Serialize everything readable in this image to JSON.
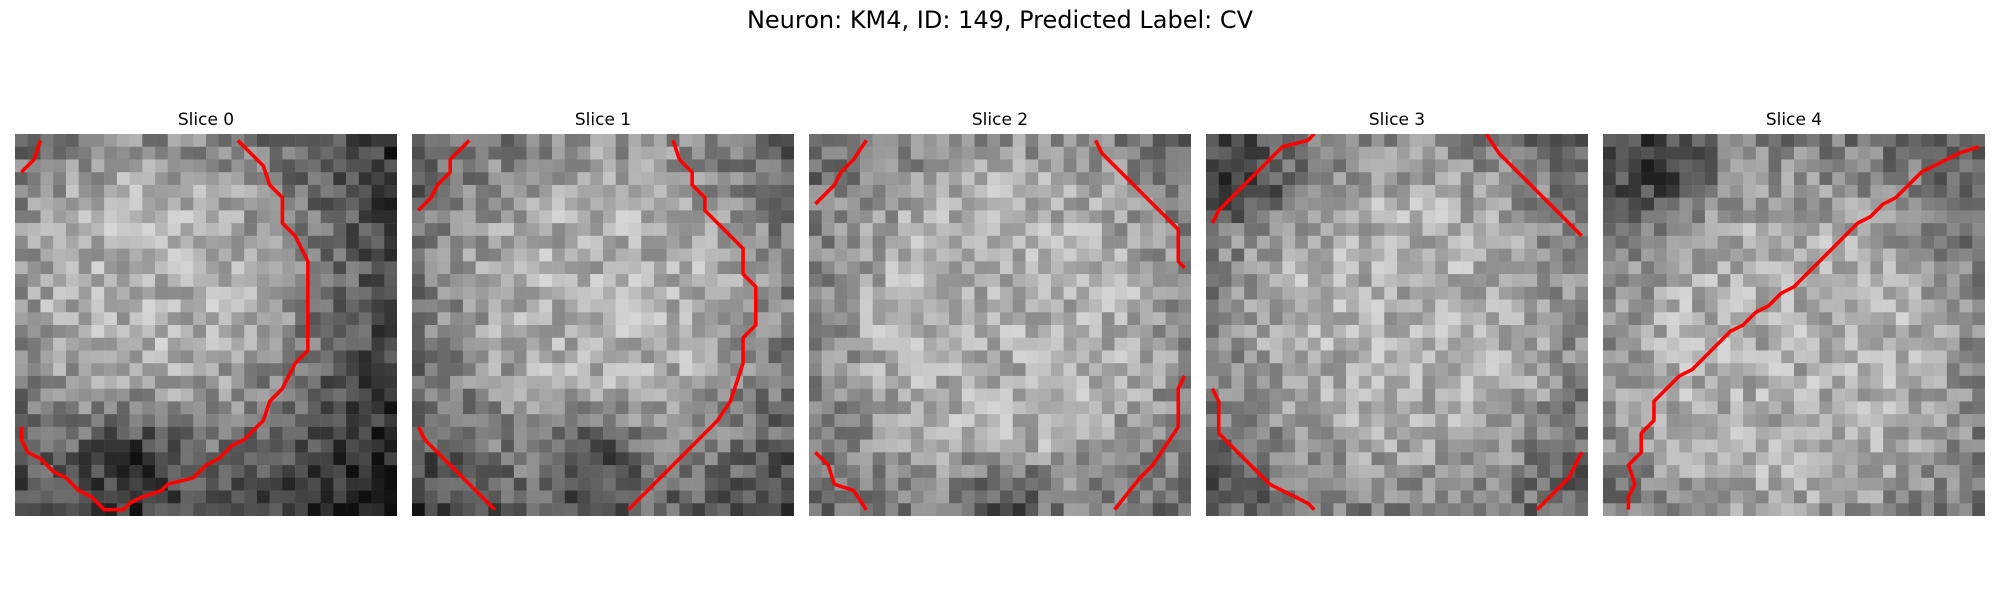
{
  "figure": {
    "title": "Neuron: KM4, ID: 149, Predicted Label: CV",
    "contour_color": "#ff0000",
    "slices": [
      {
        "title": "Slice 0",
        "contours": [
          [
            [
              0.5,
              3.0
            ],
            [
              1.5,
              2.0
            ],
            [
              2.0,
              0.5
            ]
          ],
          [
            [
              17.5,
              0.5
            ],
            [
              19.5,
              2.5
            ],
            [
              20.0,
              4.0
            ],
            [
              21.0,
              5.0
            ],
            [
              21.0,
              7.0
            ],
            [
              22.0,
              8.0
            ],
            [
              23.0,
              10.0
            ],
            [
              23.0,
              17.0
            ],
            [
              22.0,
              18.0
            ],
            [
              21.0,
              20.0
            ],
            [
              20.0,
              21.0
            ],
            [
              19.5,
              22.5
            ],
            [
              18.0,
              24.0
            ],
            [
              17.0,
              24.5
            ],
            [
              16.0,
              25.5
            ],
            [
              15.0,
              26.0
            ],
            [
              14.0,
              27.0
            ],
            [
              12.0,
              27.5
            ],
            [
              11.5,
              28.0
            ],
            [
              10.0,
              28.5
            ],
            [
              9.0,
              29.0
            ],
            [
              8.5,
              29.5
            ],
            [
              7.0,
              29.5
            ],
            [
              6.0,
              28.5
            ],
            [
              5.0,
              28.0
            ],
            [
              4.0,
              27.0
            ],
            [
              3.0,
              26.5
            ],
            [
              2.0,
              25.5
            ],
            [
              1.0,
              25.0
            ],
            [
              0.5,
              24.0
            ],
            [
              0.5,
              23.0
            ]
          ]
        ]
      },
      {
        "title": "Slice 1",
        "contours": [
          [
            [
              0.5,
              6.0
            ],
            [
              1.5,
              5.0
            ],
            [
              2.0,
              4.0
            ],
            [
              3.0,
              3.0
            ],
            [
              3.0,
              2.0
            ],
            [
              4.5,
              0.5
            ]
          ],
          [
            [
              20.5,
              0.5
            ],
            [
              21.0,
              2.0
            ],
            [
              22.0,
              3.0
            ],
            [
              22.0,
              4.0
            ],
            [
              23.0,
              5.0
            ],
            [
              23.0,
              6.0
            ],
            [
              24.0,
              7.0
            ],
            [
              25.0,
              8.0
            ],
            [
              26.0,
              9.0
            ],
            [
              26.0,
              11.0
            ],
            [
              27.0,
              12.0
            ],
            [
              27.0,
              15.0
            ],
            [
              26.0,
              16.0
            ],
            [
              26.0,
              18.0
            ],
            [
              25.5,
              19.5
            ],
            [
              25.0,
              21.0
            ],
            [
              24.0,
              22.5
            ],
            [
              23.0,
              23.5
            ],
            [
              22.0,
              24.5
            ],
            [
              21.0,
              25.5
            ],
            [
              20.0,
              26.5
            ],
            [
              19.0,
              27.5
            ],
            [
              18.0,
              28.5
            ],
            [
              17.0,
              29.5
            ]
          ],
          [
            [
              0.5,
              23.0
            ],
            [
              1.0,
              24.0
            ],
            [
              2.0,
              25.0
            ],
            [
              3.0,
              26.0
            ],
            [
              4.0,
              27.0
            ],
            [
              5.0,
              28.0
            ],
            [
              6.0,
              29.0
            ],
            [
              6.5,
              29.5
            ]
          ]
        ]
      },
      {
        "title": "Slice 2",
        "contours": [
          [
            [
              0.5,
              5.5
            ],
            [
              2.0,
              4.0
            ],
            [
              2.5,
              3.0
            ],
            [
              3.5,
              2.0
            ],
            [
              4.5,
              0.5
            ]
          ],
          [
            [
              22.5,
              0.5
            ],
            [
              23.0,
              1.5
            ],
            [
              24.0,
              2.5
            ],
            [
              25.0,
              3.5
            ],
            [
              26.0,
              4.5
            ],
            [
              27.0,
              5.5
            ],
            [
              28.0,
              6.5
            ],
            [
              29.0,
              7.5
            ],
            [
              29.0,
              10.0
            ],
            [
              29.5,
              10.5
            ]
          ],
          [
            [
              0.5,
              25.0
            ],
            [
              1.5,
              26.0
            ],
            [
              2.0,
              27.5
            ],
            [
              3.5,
              28.0
            ],
            [
              4.5,
              29.5
            ]
          ],
          [
            [
              29.5,
              19.0
            ],
            [
              29.0,
              20.0
            ],
            [
              29.0,
              23.0
            ],
            [
              28.0,
              24.5
            ],
            [
              27.0,
              26.0
            ],
            [
              26.0,
              27.0
            ],
            [
              24.0,
              29.5
            ]
          ]
        ]
      },
      {
        "title": "Slice 3",
        "contours": [
          [
            [
              0.5,
              7.0
            ],
            [
              1.0,
              6.0
            ],
            [
              2.0,
              5.0
            ],
            [
              3.0,
              4.0
            ],
            [
              4.0,
              3.0
            ],
            [
              5.0,
              2.0
            ],
            [
              6.0,
              1.0
            ],
            [
              8.0,
              0.5
            ],
            [
              8.5,
              0.0
            ]
          ],
          [
            [
              22.0,
              0.0
            ],
            [
              23.0,
              1.5
            ],
            [
              24.0,
              2.5
            ],
            [
              25.0,
              3.5
            ],
            [
              26.0,
              4.5
            ],
            [
              27.0,
              5.5
            ],
            [
              28.0,
              6.5
            ],
            [
              29.5,
              8.0
            ]
          ],
          [
            [
              0.5,
              20.0
            ],
            [
              1.0,
              21.0
            ],
            [
              1.0,
              23.5
            ],
            [
              2.0,
              24.5
            ],
            [
              3.0,
              25.5
            ],
            [
              4.0,
              26.5
            ],
            [
              5.0,
              27.5
            ],
            [
              6.0,
              28.0
            ],
            [
              7.0,
              28.5
            ],
            [
              8.0,
              29.0
            ],
            [
              8.5,
              29.5
            ]
          ],
          [
            [
              29.5,
              25.0
            ],
            [
              29.0,
              26.0
            ],
            [
              28.5,
              27.0
            ],
            [
              27.5,
              28.0
            ],
            [
              26.5,
              29.0
            ],
            [
              26.0,
              29.5
            ]
          ]
        ]
      },
      {
        "title": "Slice 4",
        "contours": [
          [
            [
              2.0,
              29.5
            ],
            [
              2.0,
              28.5
            ],
            [
              2.5,
              27.5
            ],
            [
              2.0,
              26.0
            ],
            [
              3.0,
              25.0
            ],
            [
              3.0,
              23.5
            ],
            [
              4.0,
              22.5
            ],
            [
              4.0,
              21.0
            ],
            [
              5.0,
              20.0
            ],
            [
              6.0,
              19.0
            ],
            [
              7.0,
              18.5
            ],
            [
              8.0,
              17.5
            ],
            [
              9.0,
              16.5
            ],
            [
              10.0,
              15.5
            ],
            [
              11.0,
              15.0
            ],
            [
              12.0,
              14.0
            ],
            [
              13.0,
              13.5
            ],
            [
              14.0,
              12.5
            ],
            [
              15.0,
              12.0
            ],
            [
              16.0,
              11.0
            ],
            [
              17.0,
              10.0
            ],
            [
              18.0,
              9.0
            ],
            [
              19.0,
              8.0
            ],
            [
              20.0,
              7.0
            ],
            [
              21.0,
              6.5
            ],
            [
              22.0,
              5.5
            ],
            [
              23.0,
              5.0
            ],
            [
              24.0,
              4.0
            ],
            [
              25.0,
              3.0
            ],
            [
              26.0,
              2.5
            ],
            [
              27.0,
              2.0
            ],
            [
              28.0,
              1.5
            ],
            [
              29.5,
              1.0
            ]
          ]
        ]
      }
    ]
  }
}
